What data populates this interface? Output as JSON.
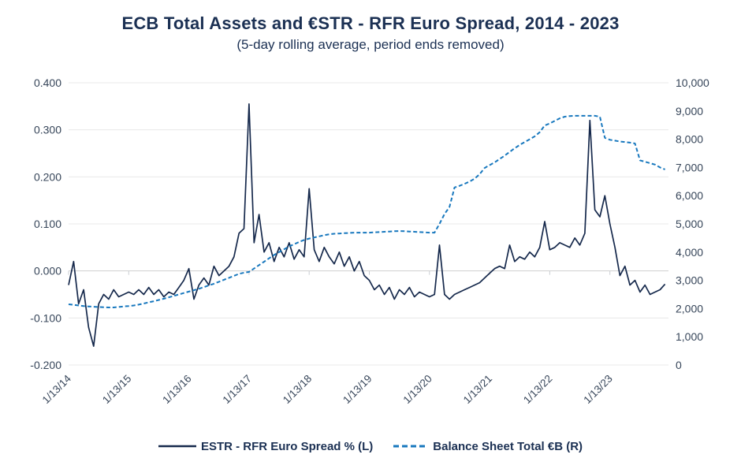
{
  "page": {
    "title": "ECB Total Assets and €STR - RFR Euro Spread, 2014 - 2023",
    "subtitle": "(5-day rolling average, period ends removed)"
  },
  "colors": {
    "title_text": "#1b3053",
    "axis_text": "#37465a",
    "spread_line": "#16294c",
    "balance_line": "#1878be",
    "gridline": "#e8e8e8",
    "zero_line": "#cfcfcf",
    "tick_mark": "#c9cdd2",
    "background": "#ffffff"
  },
  "chart_data": {
    "type": "line",
    "title": "ECB Total Assets and €STR - RFR Euro Spread, 2014 - 2023",
    "subtitle": "(5-day rolling average, period ends removed)",
    "frequency": "monthly",
    "x_start": "2014-01",
    "x_end": "2023-12",
    "x_tick_labels": [
      "1/13/14",
      "1/13/15",
      "1/13/16",
      "1/13/17",
      "1/13/18",
      "1/13/19",
      "1/13/20",
      "1/13/21",
      "1/13/22",
      "1/13/23"
    ],
    "grid": true,
    "legend_position": "bottom",
    "y_left": {
      "label": "ESTR - RFR Euro Spread %",
      "min": -0.2,
      "max": 0.4,
      "ticks": [
        "0.400",
        "0.300",
        "0.200",
        "0.100",
        "0.000",
        "-0.100",
        "-0.200"
      ]
    },
    "y_right": {
      "label": "Balance Sheet Total €B",
      "min": 0,
      "max": 10000,
      "ticks": [
        "10,000",
        "9,000",
        "8,000",
        "7,000",
        "6,000",
        "5,000",
        "4,000",
        "3,000",
        "2,000",
        "1,000",
        "0"
      ]
    },
    "series": [
      {
        "name": "ESTR - RFR Euro Spread % (L)",
        "axis": "left",
        "style": "solid",
        "color": "#16294c",
        "values": [
          -0.03,
          0.02,
          -0.07,
          -0.04,
          -0.12,
          -0.16,
          -0.07,
          -0.05,
          -0.06,
          -0.04,
          -0.055,
          -0.05,
          -0.045,
          -0.05,
          -0.04,
          -0.05,
          -0.035,
          -0.05,
          -0.04,
          -0.055,
          -0.045,
          -0.05,
          -0.035,
          -0.02,
          0.005,
          -0.06,
          -0.03,
          -0.015,
          -0.03,
          0.01,
          -0.01,
          0.0,
          0.01,
          0.03,
          0.08,
          0.09,
          0.355,
          0.06,
          0.12,
          0.04,
          0.06,
          0.02,
          0.05,
          0.03,
          0.06,
          0.025,
          0.045,
          0.03,
          0.175,
          0.045,
          0.02,
          0.05,
          0.03,
          0.015,
          0.04,
          0.01,
          0.03,
          0.0,
          0.02,
          -0.01,
          -0.02,
          -0.04,
          -0.03,
          -0.05,
          -0.035,
          -0.06,
          -0.04,
          -0.05,
          -0.035,
          -0.055,
          -0.045,
          -0.05,
          -0.055,
          -0.05,
          0.055,
          -0.05,
          -0.06,
          -0.05,
          -0.045,
          -0.04,
          -0.035,
          -0.03,
          -0.025,
          -0.015,
          -0.005,
          0.005,
          0.01,
          0.005,
          0.055,
          0.02,
          0.03,
          0.025,
          0.04,
          0.03,
          0.05,
          0.105,
          0.045,
          0.05,
          0.06,
          0.055,
          0.05,
          0.07,
          0.055,
          0.08,
          0.32,
          0.13,
          0.115,
          0.16,
          0.1,
          0.05,
          -0.01,
          0.01,
          -0.03,
          -0.02,
          -0.045,
          -0.03,
          -0.05,
          -0.045,
          -0.04,
          -0.028
        ]
      },
      {
        "name": "Balance Sheet Total €B (R)",
        "axis": "right",
        "style": "dashed",
        "color": "#1878be",
        "values": [
          2150,
          2130,
          2110,
          2090,
          2075,
          2065,
          2055,
          2045,
          2040,
          2040,
          2055,
          2075,
          2090,
          2110,
          2140,
          2180,
          2220,
          2260,
          2305,
          2350,
          2400,
          2450,
          2500,
          2550,
          2600,
          2650,
          2700,
          2760,
          2820,
          2880,
          2950,
          3020,
          3090,
          3160,
          3230,
          3270,
          3300,
          3420,
          3540,
          3660,
          3780,
          3900,
          4000,
          4100,
          4200,
          4280,
          4360,
          4430,
          4480,
          4520,
          4560,
          4600,
          4630,
          4650,
          4660,
          4670,
          4680,
          4690,
          4690,
          4690,
          4690,
          4700,
          4710,
          4720,
          4730,
          4740,
          4750,
          4740,
          4730,
          4720,
          4710,
          4700,
          4690,
          4690,
          5000,
          5350,
          5600,
          6290,
          6350,
          6420,
          6500,
          6600,
          6760,
          6980,
          7080,
          7180,
          7300,
          7420,
          7550,
          7680,
          7800,
          7900,
          8000,
          8100,
          8250,
          8490,
          8560,
          8650,
          8740,
          8800,
          8820,
          8830,
          8830,
          8830,
          8830,
          8830,
          8800,
          8050,
          7980,
          7950,
          7920,
          7900,
          7880,
          7850,
          7250,
          7200,
          7150,
          7100,
          7000,
          6930
        ]
      }
    ]
  },
  "legend": {
    "items": [
      {
        "label": "ESTR - RFR Euro Spread % (L)",
        "swatch": "solid-line"
      },
      {
        "label": "Balance Sheet Total €B (R)",
        "swatch": "dashed-line"
      }
    ]
  }
}
